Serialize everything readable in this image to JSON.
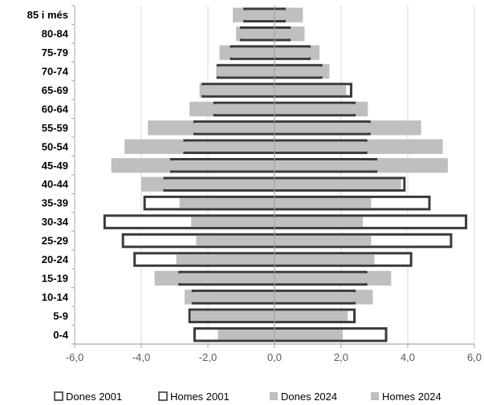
{
  "chart_data": {
    "type": "bar",
    "orientation": "horizontal",
    "stacked": false,
    "title": "",
    "xlabel": "",
    "ylabel": "",
    "xlim": [
      -6,
      6
    ],
    "x_ticks": [
      "-6,0",
      "-4,0",
      "-2,0",
      "0,0",
      "2,0",
      "4,0",
      "6,0"
    ],
    "grid": "vertical",
    "legend_position": "bottom",
    "categories": [
      "85 i més",
      "80-84",
      "75-79",
      "70-74",
      "65-69",
      "60-64",
      "55-59",
      "50-54",
      "45-49",
      "40-44",
      "35-39",
      "30-34",
      "25-29",
      "20-24",
      "15-19",
      "10-14",
      "5-9",
      "0-4"
    ],
    "series": [
      {
        "name": "Dones 2001",
        "style": "outline",
        "values": [
          -0.9,
          -1.0,
          -1.3,
          -1.7,
          -2.15,
          -1.8,
          -2.4,
          -2.7,
          -3.1,
          -3.3,
          -3.9,
          -5.1,
          -4.55,
          -4.2,
          -2.85,
          -2.45,
          -2.55,
          -2.4
        ]
      },
      {
        "name": "Homes 2001",
        "style": "outline",
        "values": [
          0.3,
          0.45,
          1.05,
          1.4,
          2.3,
          2.4,
          2.85,
          2.75,
          3.05,
          3.9,
          4.65,
          5.75,
          5.3,
          4.1,
          2.75,
          2.4,
          2.4,
          3.35
        ]
      },
      {
        "name": "Dones 2024",
        "style": "fill",
        "values": [
          -1.25,
          -1.15,
          -1.65,
          -1.75,
          -2.25,
          -2.55,
          -3.8,
          -4.5,
          -4.9,
          -4.0,
          -2.85,
          -2.5,
          -2.35,
          -2.95,
          -3.6,
          -2.7,
          -2.5,
          -1.7
        ]
      },
      {
        "name": "Homes 2024",
        "style": "fill",
        "values": [
          0.85,
          0.9,
          1.35,
          1.65,
          2.15,
          2.8,
          4.4,
          5.05,
          5.2,
          3.8,
          2.9,
          2.65,
          2.9,
          3.0,
          3.5,
          2.95,
          2.2,
          2.05
        ]
      }
    ],
    "colors": {
      "fill": "#bfbfbf",
      "outline_stroke": "#3a3a3a",
      "outline_fill": "#ffffff",
      "grid": "#d9d9d9",
      "axis": "#a6a6a6"
    }
  }
}
